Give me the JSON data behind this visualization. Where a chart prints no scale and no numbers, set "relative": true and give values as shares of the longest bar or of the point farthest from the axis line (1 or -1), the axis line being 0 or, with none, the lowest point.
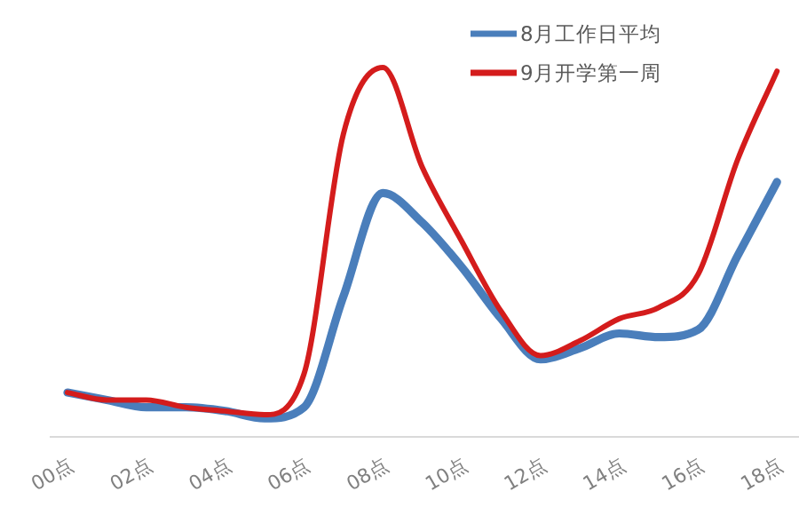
{
  "chart_data": {
    "type": "line",
    "relative": true,
    "legend": "top right",
    "grid": false,
    "marker": "none",
    "line_style": "solid",
    "categories": [
      "00点",
      null,
      "02点",
      null,
      "04点",
      null,
      "06点",
      null,
      "08点",
      null,
      "10点",
      null,
      "12点",
      null,
      "14点",
      null,
      "16点",
      null,
      "18点"
    ],
    "series": [
      {
        "name": "8月工作日平均",
        "color": "#4a7ebb",
        "values": [
          0.12,
          0.1,
          0.08,
          0.08,
          0.07,
          0.05,
          0.08,
          0.38,
          0.66,
          0.58,
          0.46,
          0.32,
          0.21,
          0.24,
          0.28,
          0.27,
          0.29,
          0.49,
          0.69
        ]
      },
      {
        "name": "9月开学第一周",
        "color": "#d41c1c",
        "values": [
          0.12,
          0.1,
          0.1,
          0.08,
          0.07,
          0.06,
          0.17,
          0.82,
          1.0,
          0.73,
          0.53,
          0.34,
          0.22,
          0.26,
          0.32,
          0.35,
          0.44,
          0.75,
          0.99
        ]
      }
    ]
  }
}
